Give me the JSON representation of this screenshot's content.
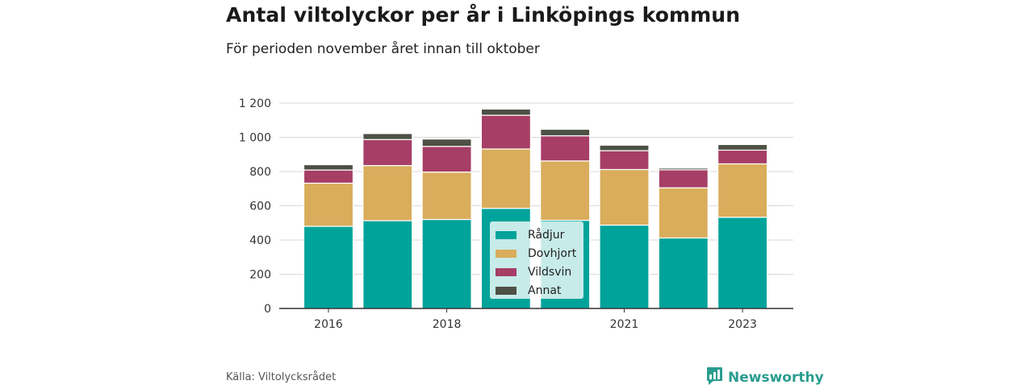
{
  "title": "Antal viltolyckor per år i Linköpings kommun",
  "subtitle": "För perioden november året innan till oktober",
  "source": "Källa: Viltolycksrådet",
  "brand": "Newsworthy",
  "colors": {
    "radjur": "#00a39a",
    "dovhjort": "#d9ad5c",
    "vildsvin": "#a63e66",
    "annat": "#4d5044",
    "brand": "#2a9d8f"
  },
  "chart_data": {
    "type": "bar",
    "stacked": true,
    "categories": [
      "2016",
      "2017",
      "2018",
      "2019",
      "2020",
      "2021",
      "2022",
      "2023"
    ],
    "x_tick_labels": [
      "2016",
      "",
      "2018",
      "",
      "",
      "2021",
      "",
      "2023"
    ],
    "series": [
      {
        "name": "Rådjur",
        "values": [
          480,
          513,
          520,
          585,
          515,
          487,
          412,
          533
        ]
      },
      {
        "name": "Dovhjort",
        "values": [
          252,
          322,
          277,
          347,
          347,
          325,
          293,
          312
        ]
      },
      {
        "name": "Vildsvin",
        "values": [
          77,
          152,
          150,
          197,
          147,
          110,
          105,
          80
        ]
      },
      {
        "name": "Annat",
        "values": [
          31,
          35,
          43,
          36,
          38,
          32,
          10,
          33
        ]
      }
    ],
    "y_ticks": [
      0,
      200,
      400,
      600,
      800,
      1000,
      1200
    ],
    "y_tick_labels": [
      "0",
      "200",
      "400",
      "600",
      "800",
      "1 000",
      "1 200"
    ],
    "ylim": [
      0,
      1200
    ],
    "grid": true,
    "legend_position": "center-bottom"
  }
}
